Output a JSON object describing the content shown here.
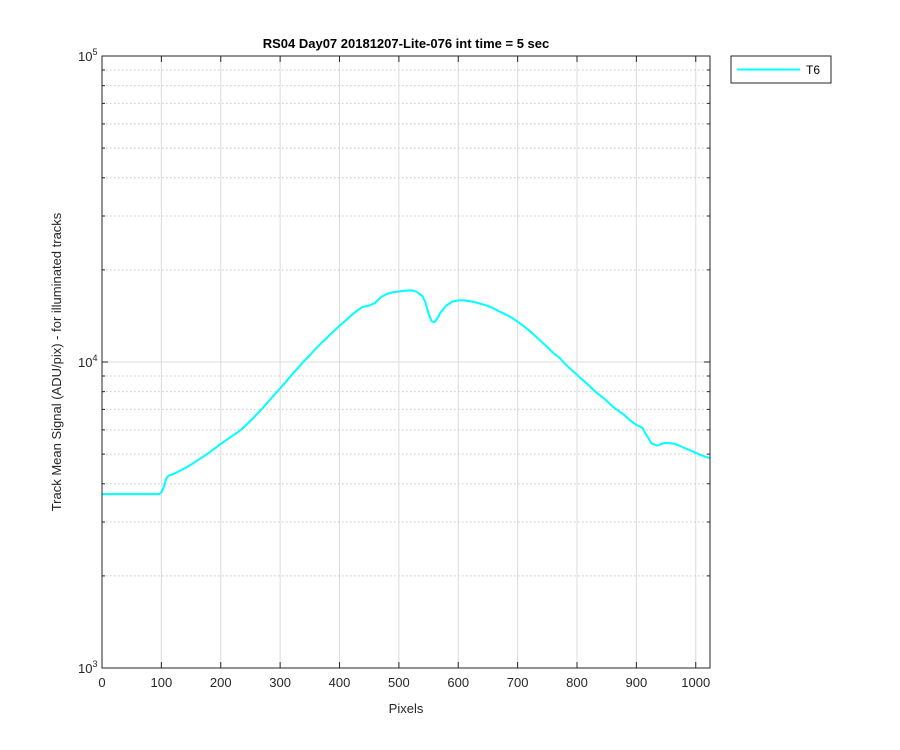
{
  "chart_data": {
    "type": "line",
    "title": "RS04 Day07 20181207-Lite-076 int time = 5 sec",
    "xlabel": "Pixels",
    "ylabel": "Track Mean Signal (ADU/pix) - for illuminated tracks",
    "xlim": [
      0,
      1024
    ],
    "ylim": [
      1000,
      100000
    ],
    "yscale": "log",
    "grid": true,
    "legend_position": "outside-top-right",
    "x_ticks": [
      "0",
      "100",
      "200",
      "300",
      "400",
      "500",
      "600",
      "700",
      "800",
      "900",
      "1000"
    ],
    "y_tick_labels": [
      {
        "base": "10",
        "exp": "3"
      },
      {
        "base": "10",
        "exp": "4"
      },
      {
        "base": "10",
        "exp": "5"
      }
    ],
    "series": [
      {
        "name": "T6",
        "color": "#00FFFF",
        "x": [
          0,
          20,
          40,
          60,
          80,
          96,
          100,
          104,
          108,
          112,
          120,
          130,
          140,
          150,
          160,
          170,
          180,
          190,
          200,
          210,
          220,
          230,
          240,
          250,
          260,
          270,
          280,
          290,
          300,
          310,
          320,
          330,
          340,
          350,
          360,
          370,
          380,
          390,
          400,
          410,
          420,
          430,
          440,
          450,
          460,
          470,
          480,
          490,
          500,
          510,
          520,
          525,
          530,
          540,
          545,
          550,
          555,
          560,
          565,
          570,
          580,
          590,
          600,
          610,
          620,
          630,
          640,
          650,
          660,
          670,
          680,
          690,
          700,
          710,
          720,
          730,
          740,
          750,
          760,
          770,
          780,
          790,
          800,
          810,
          820,
          830,
          840,
          850,
          860,
          870,
          880,
          890,
          900,
          910,
          915,
          920,
          925,
          930,
          935,
          940,
          945,
          950,
          955,
          960,
          965,
          970,
          980,
          990,
          1000,
          1010,
          1024
        ],
        "values": [
          3700,
          3700,
          3700,
          3700,
          3700,
          3700,
          3750,
          3900,
          4150,
          4250,
          4300,
          4400,
          4500,
          4620,
          4760,
          4900,
          5050,
          5220,
          5400,
          5570,
          5750,
          5920,
          6150,
          6420,
          6730,
          7050,
          7420,
          7800,
          8200,
          8630,
          9100,
          9560,
          10050,
          10520,
          11050,
          11560,
          12060,
          12600,
          13120,
          13650,
          14200,
          14750,
          15150,
          15300,
          15600,
          16300,
          16700,
          16900,
          17000,
          17100,
          17150,
          17100,
          16950,
          16400,
          15600,
          14400,
          13600,
          13500,
          13900,
          14500,
          15300,
          15750,
          15900,
          15900,
          15800,
          15650,
          15450,
          15250,
          14950,
          14600,
          14300,
          13950,
          13550,
          13100,
          12650,
          12150,
          11650,
          11200,
          10700,
          10350,
          9850,
          9450,
          9080,
          8720,
          8380,
          8030,
          7750,
          7470,
          7150,
          6920,
          6700,
          6430,
          6230,
          6100,
          5850,
          5650,
          5430,
          5380,
          5330,
          5380,
          5420,
          5440,
          5430,
          5420,
          5400,
          5350,
          5250,
          5150,
          5050,
          4950,
          4850
        ]
      }
    ]
  }
}
